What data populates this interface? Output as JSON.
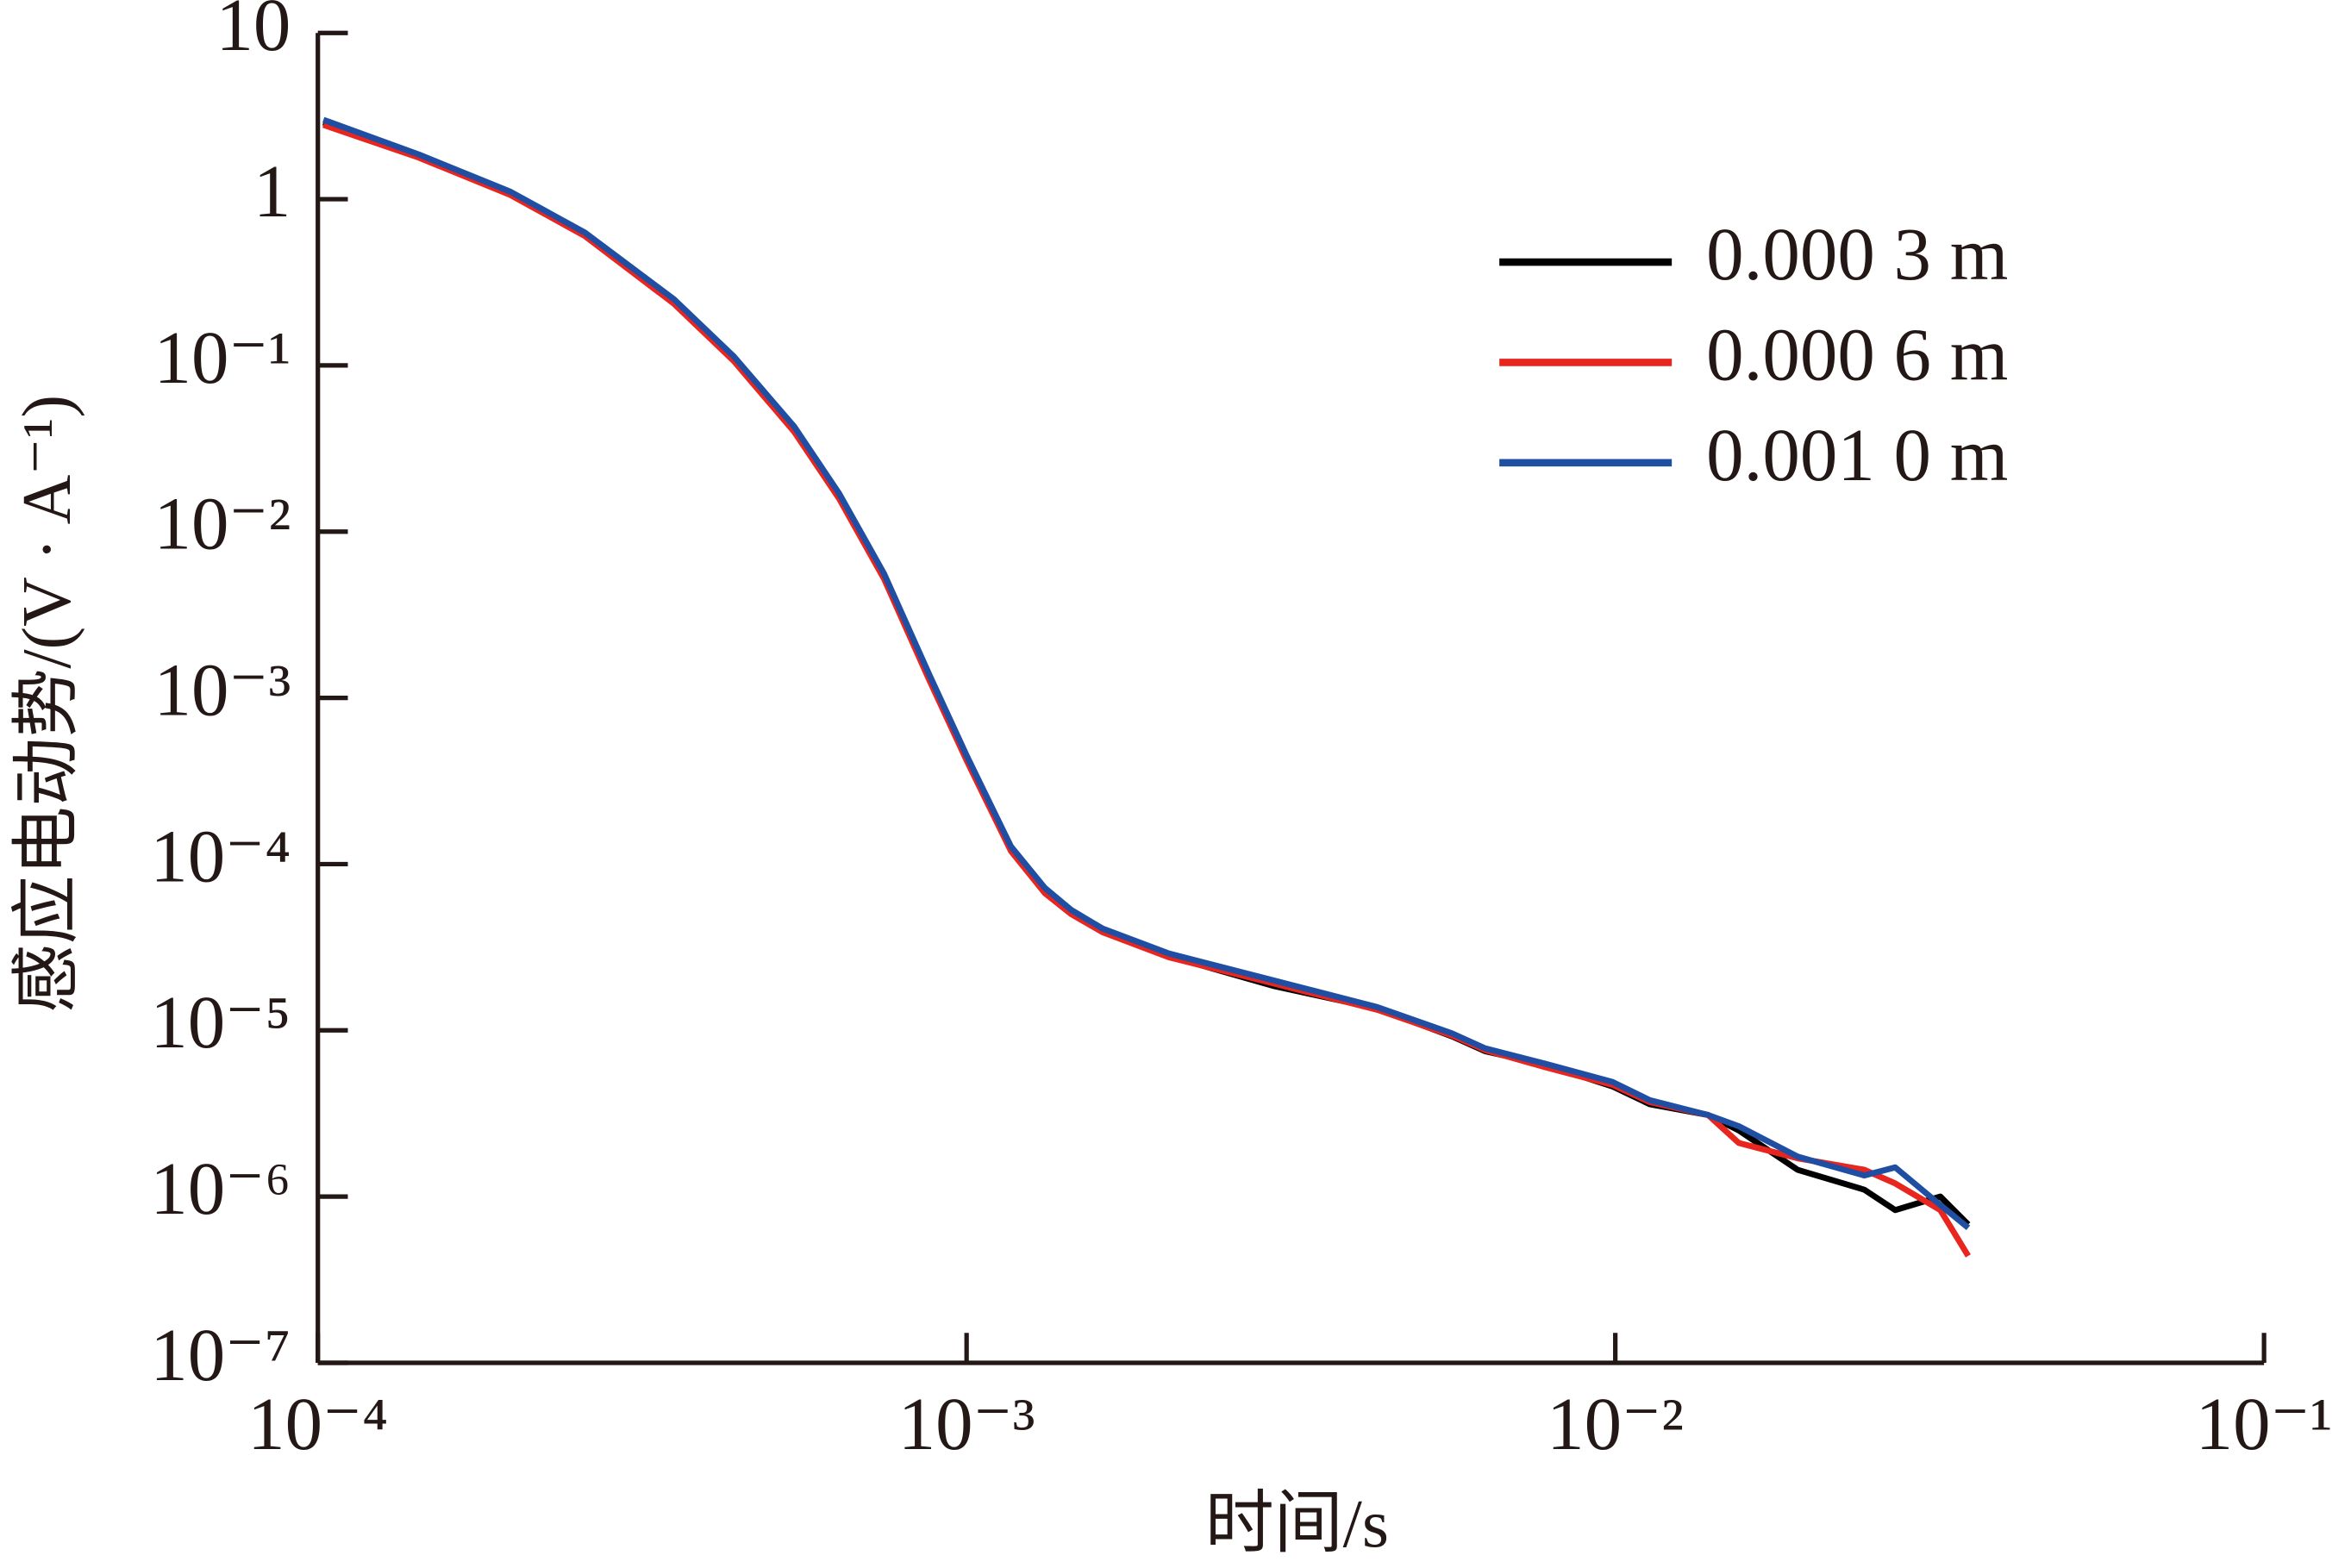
{
  "chart_data": {
    "type": "line",
    "xlabel": "时间/s",
    "ylabel": "感应电动势/(V · A⁻¹)",
    "xscale": "log",
    "yscale": "log",
    "xlim": [
      0.0001,
      0.1
    ],
    "ylim": [
      1e-07,
      10
    ],
    "xticks": [
      {
        "value": 0.0001,
        "label": "10⁻⁴"
      },
      {
        "value": 0.001,
        "label": "10⁻³"
      },
      {
        "value": 0.01,
        "label": "10⁻²"
      },
      {
        "value": 0.1,
        "label": "10⁻¹"
      }
    ],
    "yticks": [
      {
        "value": 1e-07,
        "label": "10⁻⁷"
      },
      {
        "value": 1e-06,
        "label": "10⁻⁶"
      },
      {
        "value": 1e-05,
        "label": "10⁻⁵"
      },
      {
        "value": 0.0001,
        "label": "10⁻⁴"
      },
      {
        "value": 0.001,
        "label": "10⁻³"
      },
      {
        "value": 0.01,
        "label": "10⁻²"
      },
      {
        "value": 0.1,
        "label": "10⁻¹"
      },
      1,
      10
    ],
    "legend": "upper right",
    "x": [
      0.000102,
      0.000143,
      0.000198,
      0.000258,
      0.000354,
      0.000438,
      0.000542,
      0.000636,
      0.000746,
      0.000876,
      0.001,
      0.00117,
      0.00132,
      0.00145,
      0.00162,
      0.00205,
      0.00297,
      0.0043,
      0.0056,
      0.0063,
      0.0078,
      0.0099,
      0.0113,
      0.0139,
      0.0155,
      0.0191,
      0.0242,
      0.027,
      0.0317,
      0.035
    ],
    "series": [
      {
        "name": "0.000 3 m",
        "color": "#000000",
        "values": [
          2.9,
          1.8,
          1.08,
          0.61,
          0.24,
          0.108,
          0.041,
          0.0162,
          0.0053,
          0.00131,
          0.00043,
          0.000122,
          6.8e-05,
          5.1e-05,
          4e-05,
          2.8e-05,
          1.85e-05,
          1.35e-05,
          9.2e-06,
          7.5e-06,
          6.2e-06,
          4.6e-06,
          3.6e-06,
          3.1e-06,
          2.5e-06,
          1.45e-06,
          1.1e-06,
          8.3e-07,
          1e-06,
          6.8e-07
        ]
      },
      {
        "name": "0.000 6 m",
        "color": "#e8251f",
        "values": [
          2.8,
          1.78,
          1.06,
          0.6,
          0.235,
          0.106,
          0.04,
          0.0158,
          0.0052,
          0.00128,
          0.00042,
          0.00012,
          6.7e-05,
          5e-05,
          3.9e-05,
          2.75e-05,
          1.92e-05,
          1.33e-05,
          9.3e-06,
          7.6e-06,
          6e-06,
          4.7e-06,
          3.7e-06,
          3.1e-06,
          2.1e-06,
          1.7e-06,
          1.45e-06,
          1.2e-06,
          8.3e-07,
          4.4e-07
        ]
      },
      {
        "name": "0.001 0 m",
        "color": "#1f4ea3",
        "values": [
          3.0,
          1.86,
          1.11,
          0.63,
          0.25,
          0.113,
          0.043,
          0.017,
          0.0056,
          0.00138,
          0.00045,
          0.000128,
          7.2e-05,
          5.3e-05,
          4.1e-05,
          2.9e-05,
          2e-05,
          1.38e-05,
          9.6e-06,
          7.8e-06,
          6.3e-06,
          4.9e-06,
          3.8e-06,
          3.1e-06,
          2.65e-06,
          1.74e-06,
          1.34e-06,
          1.5e-06,
          8.9e-07,
          6.5e-07
        ]
      }
    ]
  }
}
